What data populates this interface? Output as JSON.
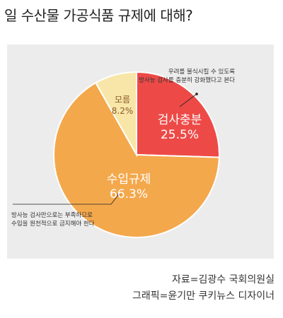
{
  "page": {
    "title": "일 수산물 가공식품 규제에 대해?",
    "source": "자료=김광수 국회의원실",
    "credit": "그래픽=윤기만 쿠키뉴스 디자이너"
  },
  "chart_data": {
    "type": "pie",
    "start_angle": "12 o'clock",
    "direction": "clockwise",
    "slices": [
      {
        "label": "검사충분",
        "value": 25.5,
        "value_text": "25.5%",
        "color": "#ed4a47",
        "text_color": "#ffffff",
        "annotation": [
          "우려를 불식시킬 수 있도록",
          "방사능 검사를 충분히 강화했다고 본다"
        ]
      },
      {
        "label": "수입규제",
        "value": 66.3,
        "value_text": "66.3%",
        "color": "#f4a84c",
        "text_color": "#ffffff",
        "annotation": [
          "방사능 검사만으로는 부족하므로",
          "수입을 원천적으로 금지해야 한다"
        ]
      },
      {
        "label": "모름",
        "value": 8.2,
        "value_text": "8.2%",
        "color": "#f7e6a8",
        "text_color": "#8a5a2b",
        "annotation": []
      }
    ]
  }
}
